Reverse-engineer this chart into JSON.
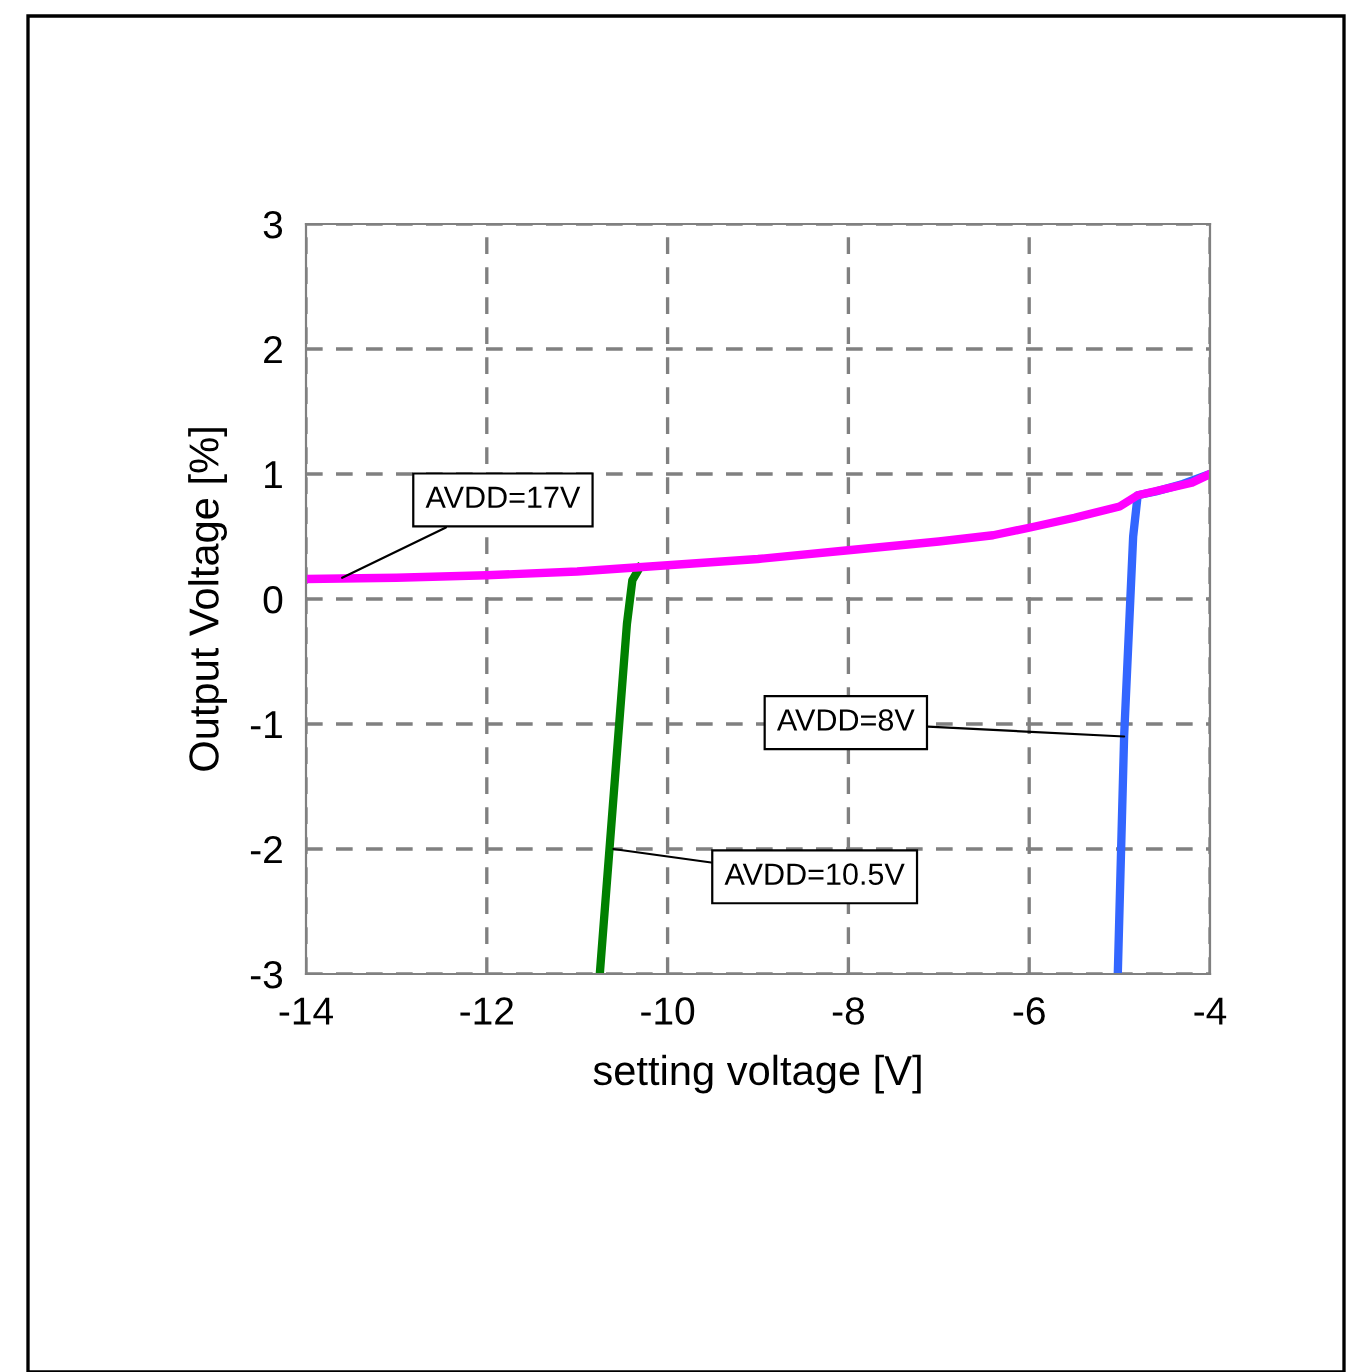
{
  "chart_data": {
    "type": "line",
    "xlabel": "setting voltage [V]",
    "ylabel": "Output Voltage [%]",
    "xlim": [
      -14,
      -4
    ],
    "xticks": [
      -14,
      -12,
      -10,
      -8,
      -6,
      -4
    ],
    "ylim": [
      -3,
      3
    ],
    "yticks": [
      -3,
      -2,
      -1,
      0,
      1,
      2,
      3
    ],
    "grid": true,
    "marker": "none",
    "line_style": "solid",
    "series": [
      {
        "color": "#008000",
        "x": [
          -10.75,
          -10.6,
          -10.45,
          -10.39,
          -10.31
        ],
        "values": [
          -3,
          -1.6,
          -0.2,
          0.15,
          0.25
        ]
      },
      {
        "color": "#3366ff",
        "x": [
          -5.02,
          -4.95,
          -4.85,
          -4.8,
          -4.6,
          -4.3,
          -4
        ],
        "values": [
          -3,
          -1.1,
          0.5,
          0.83,
          0.86,
          0.92,
          1.0
        ]
      },
      {
        "color": "#ff00ff",
        "x": [
          -14,
          -13,
          -12,
          -11,
          -10,
          -9,
          -8,
          -7,
          -6.4,
          -6,
          -5.5,
          -5,
          -4.8,
          -4.5,
          -4.2,
          -4
        ],
        "values": [
          0.16,
          0.17,
          0.19,
          0.22,
          0.27,
          0.32,
          0.39,
          0.46,
          0.51,
          0.57,
          0.65,
          0.74,
          0.83,
          0.88,
          0.93,
          1.0
        ]
      }
    ],
    "annotations": [
      {
        "text": "AVDD=17V",
        "x": -13.6,
        "y": 0.17
      },
      {
        "text": "AVDD=10.5V",
        "x": -10.6,
        "y": -2.0
      },
      {
        "text": "AVDD=8V",
        "x": -4.95,
        "y": -1.1
      }
    ]
  }
}
